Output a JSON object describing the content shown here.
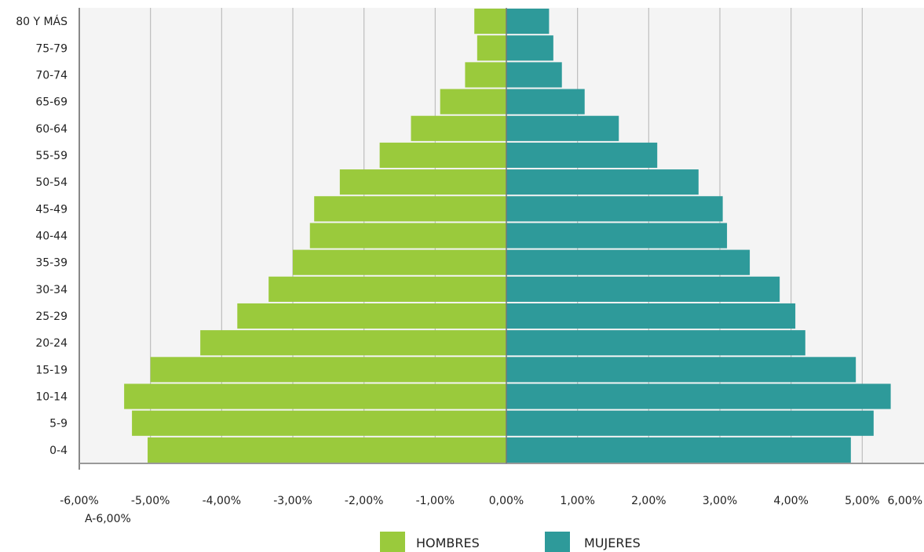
{
  "chart_data": {
    "type": "bar",
    "orientation": "horizontal",
    "categories": [
      "0-4",
      "5-9",
      "10-14",
      "15-19",
      "20-24",
      "25-29",
      "30-34",
      "35-39",
      "40-44",
      "45-49",
      "50-54",
      "55-59",
      "60-64",
      "65-69",
      "70-74",
      "75-79",
      "80 Y MÁS"
    ],
    "series": [
      {
        "name": "HOMBRES",
        "color": "#9aca3c",
        "values": [
          -5.04,
          -5.26,
          -5.37,
          -5.0,
          -4.3,
          -3.78,
          -3.34,
          -3.0,
          -2.76,
          -2.7,
          -2.34,
          -1.78,
          -1.34,
          -0.93,
          -0.58,
          -0.41,
          -0.45
        ]
      },
      {
        "name": "MUJERES",
        "color": "#2e9a9a",
        "values": [
          4.84,
          5.16,
          5.4,
          4.91,
          4.2,
          4.06,
          3.84,
          3.42,
          3.1,
          3.04,
          2.7,
          2.12,
          1.58,
          1.1,
          0.78,
          0.66,
          0.6
        ]
      }
    ],
    "xlim": [
      -6,
      6
    ],
    "xticks": [
      -6,
      -5,
      -4,
      -3,
      -2,
      -1,
      0,
      1,
      2,
      3,
      4,
      5,
      6
    ],
    "xtick_labels": [
      "-6,00%",
      "-5,00%",
      "-4,00%",
      "-3,00%",
      "-2,00%",
      "-1,00%",
      "0,00%",
      "1,00%",
      "2,00%",
      "3,00%",
      "4,00%",
      "5,00%",
      "6,00%"
    ],
    "extra_tick_label": "A-6,00%",
    "grid": true,
    "legend": "bottom-center",
    "background": "#f4f4f4",
    "grid_color": "#bdbdbd",
    "title": "",
    "xlabel": "",
    "ylabel": ""
  }
}
